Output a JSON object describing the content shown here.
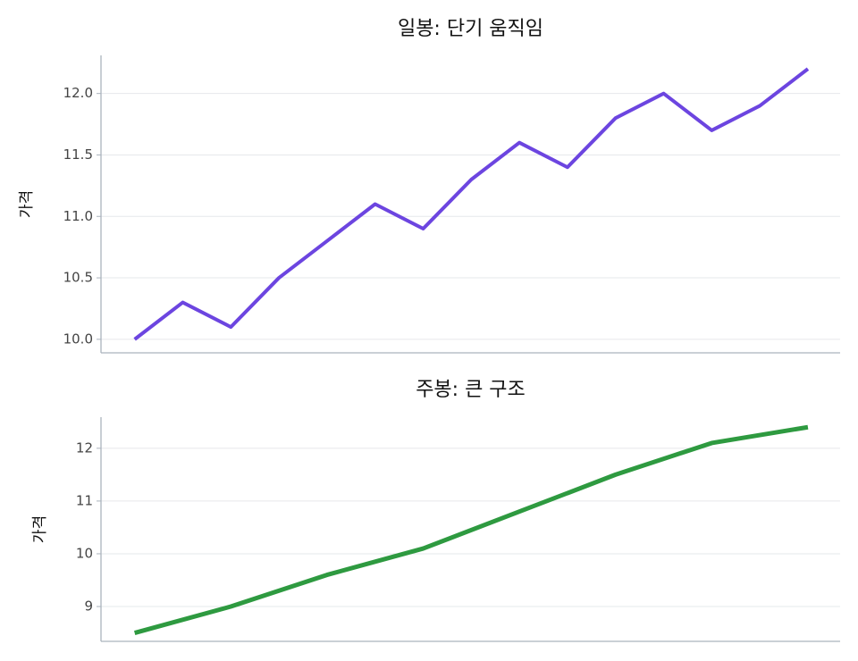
{
  "chart_data": [
    {
      "type": "line",
      "title": "일봉: 단기 움직임",
      "y_label": "가격",
      "x": [
        0,
        1,
        2,
        3,
        4,
        5,
        6,
        7,
        8,
        9,
        10,
        11,
        12,
        13,
        14
      ],
      "series": [
        {
          "color": "#6c45e0",
          "values": [
            10.0,
            10.3,
            10.1,
            10.5,
            10.8,
            11.1,
            10.9,
            11.3,
            11.6,
            11.4,
            11.8,
            12.0,
            11.7,
            11.9,
            12.2
          ]
        }
      ],
      "xlim": [
        -0.7,
        14.67
      ],
      "ylim": [
        9.89,
        12.31
      ],
      "yticks": [
        {
          "value": 10,
          "label": "10.0"
        },
        10.5,
        {
          "value": 11,
          "label": "11.0"
        },
        11.5,
        {
          "value": 12,
          "label": "12.0"
        }
      ],
      "grid": true
    },
    {
      "type": "line",
      "title": "주봉: 큰 구조",
      "y_label": "가격",
      "x": [
        0,
        2,
        4,
        6,
        8,
        10,
        12,
        14
      ],
      "series": [
        {
          "color": "#2e9a40",
          "values": [
            8.5,
            9.0,
            9.6,
            10.1,
            10.8,
            11.5,
            12.1,
            12.4
          ]
        }
      ],
      "xlim": [
        -0.7,
        14.67
      ],
      "ylim": [
        8.34,
        12.59
      ],
      "yticks": [
        9,
        10,
        11,
        12
      ],
      "grid": true
    }
  ]
}
